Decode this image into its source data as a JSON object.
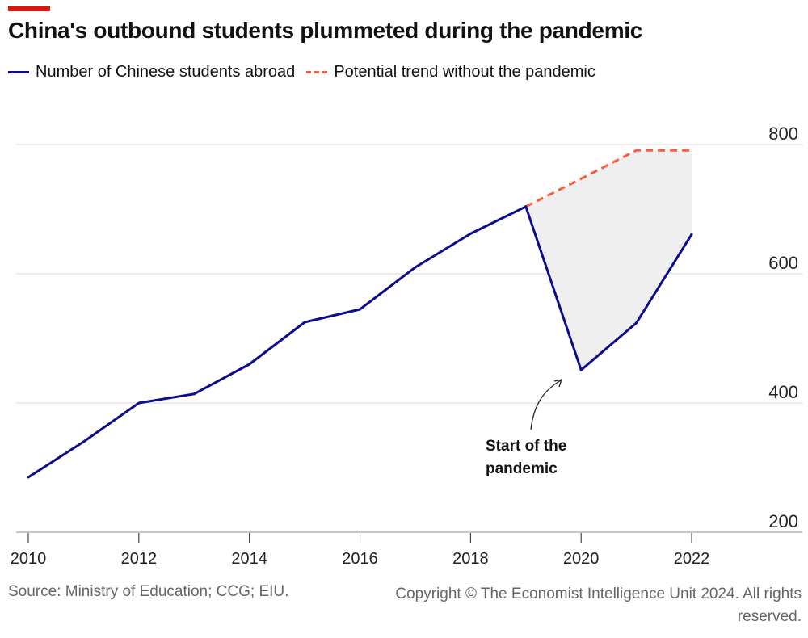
{
  "title": "China's outbound students plummeted during the pandemic",
  "legend": [
    {
      "label": "Number of Chinese students abroad",
      "color": "#0c0c8c",
      "style": "solid"
    },
    {
      "label": "Potential trend without the pandemic",
      "color": "#ff5a3c",
      "style": "dashed"
    }
  ],
  "source": "Source: Ministry of Education; CCG; EIU.",
  "copyright": "Copyright © The Economist Intelligence Unit 2024. All rights reserved.",
  "chart_data": {
    "type": "line",
    "title": "China's outbound students plummeted during the pandemic",
    "x": [
      2010,
      2011,
      2012,
      2013,
      2014,
      2015,
      2016,
      2017,
      2018,
      2019,
      2020,
      2021,
      2022
    ],
    "series": [
      {
        "name": "Number of Chinese students abroad",
        "color": "#0c0c8c",
        "style": "solid",
        "values": [
          285,
          340,
          400,
          414,
          460,
          525,
          545,
          610,
          662,
          704,
          451,
          524,
          661
        ]
      },
      {
        "name": "Potential trend without the pandemic",
        "color": "#ff5a3c",
        "style": "dashed",
        "x": [
          2019,
          2020,
          2021,
          2022
        ],
        "values": [
          704,
          747,
          791,
          791
        ]
      }
    ],
    "xlim": [
      2010,
      2023
    ],
    "ylim": [
      200,
      800
    ],
    "xticks": [
      "2010",
      "2012",
      "2014",
      "2016",
      "2018",
      "2020",
      "2022"
    ],
    "yticks": [
      "200",
      "400",
      "600",
      "800"
    ],
    "y_axis_side": "right",
    "grid": true,
    "shaded_gap_color": "#efefef",
    "annotation": {
      "text_line1": "Start of the",
      "text_line2": "pandemic",
      "x": 2020
    }
  }
}
